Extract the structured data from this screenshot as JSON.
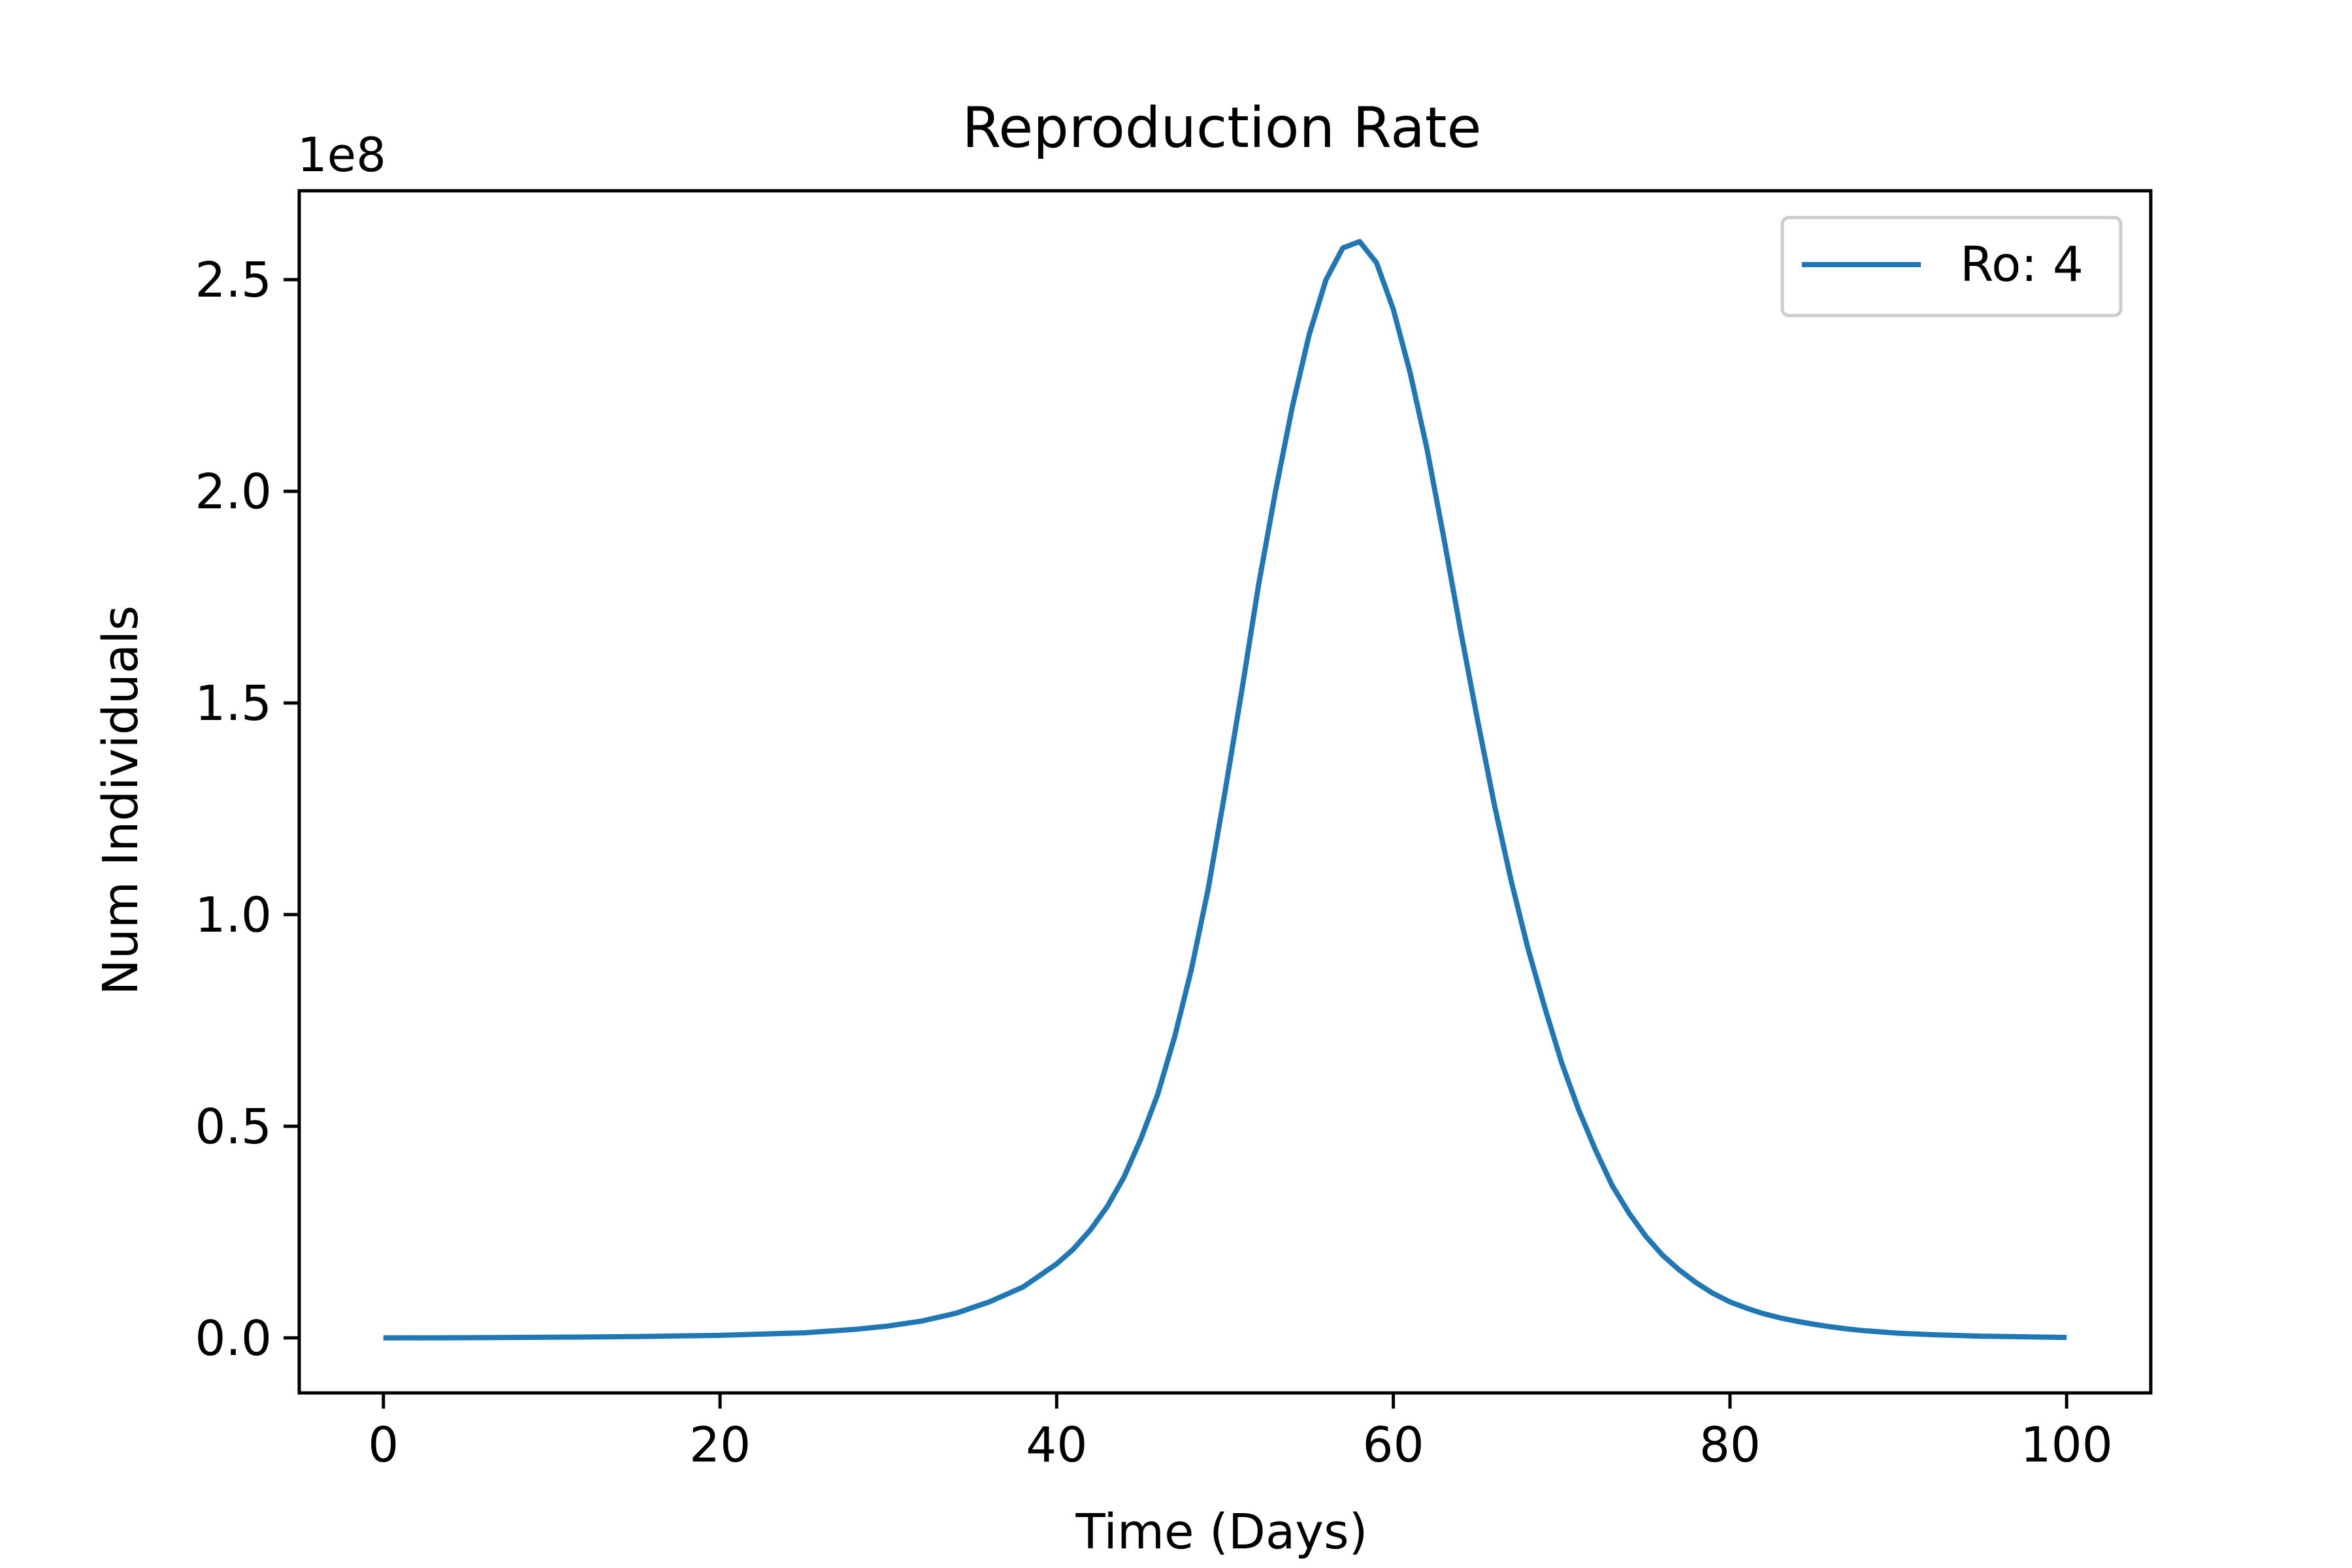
{
  "chart_data": {
    "type": "line",
    "title": "Reproduction Rate",
    "xlabel": "Time (Days)",
    "ylabel": "Num Individuals",
    "y_offset_label": "1e8",
    "xlim": [
      -5,
      105
    ],
    "ylim": [
      -0.13,
      2.71
    ],
    "x_ticks": [
      0,
      20,
      40,
      60,
      80,
      100
    ],
    "x_tick_labels": [
      "0",
      "20",
      "40",
      "60",
      "80",
      "100"
    ],
    "y_ticks": [
      0.0,
      0.5,
      1.0,
      1.5,
      2.0,
      2.5
    ],
    "y_tick_labels": [
      "0.0",
      "0.5",
      "1.0",
      "1.5",
      "2.0",
      "2.5"
    ],
    "grid": false,
    "legend_position": "top-right",
    "series": [
      {
        "name": "Ro: 4",
        "color": "#1f77b4",
        "x": [
          0,
          5,
          10,
          15,
          20,
          25,
          28,
          30,
          32,
          34,
          36,
          38,
          40,
          41,
          42,
          43,
          44,
          45,
          46,
          47,
          48,
          49,
          50,
          51,
          52,
          53,
          54,
          55,
          56,
          57,
          58,
          59,
          60,
          61,
          62,
          63,
          64,
          65,
          66,
          67,
          68,
          69,
          70,
          71,
          72,
          73,
          74,
          75,
          76,
          77,
          78,
          79,
          80,
          81,
          82,
          83,
          84,
          85,
          86,
          87,
          88,
          90,
          92,
          95,
          100
        ],
        "y": [
          0.0,
          0.0005,
          0.0015,
          0.003,
          0.006,
          0.012,
          0.02,
          0.028,
          0.04,
          0.058,
          0.085,
          0.12,
          0.175,
          0.21,
          0.255,
          0.31,
          0.38,
          0.47,
          0.575,
          0.71,
          0.87,
          1.06,
          1.29,
          1.53,
          1.78,
          2.0,
          2.2,
          2.37,
          2.5,
          2.575,
          2.59,
          2.54,
          2.43,
          2.28,
          2.1,
          1.89,
          1.67,
          1.46,
          1.26,
          1.08,
          0.92,
          0.78,
          0.65,
          0.54,
          0.445,
          0.36,
          0.295,
          0.24,
          0.195,
          0.16,
          0.13,
          0.105,
          0.085,
          0.07,
          0.057,
          0.047,
          0.039,
          0.032,
          0.026,
          0.021,
          0.017,
          0.011,
          0.0075,
          0.004,
          0.001
        ]
      }
    ]
  }
}
